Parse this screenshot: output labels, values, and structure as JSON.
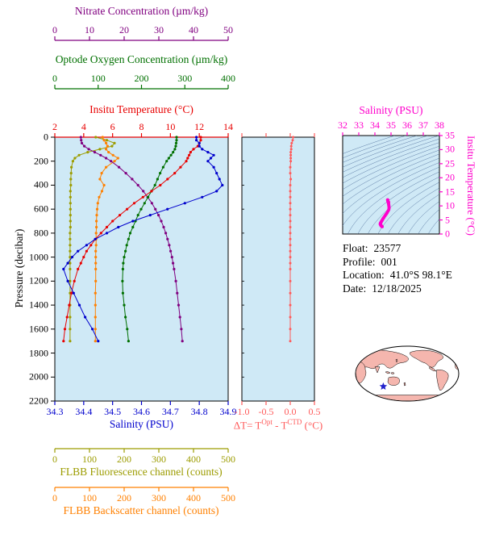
{
  "main_plot": {
    "bg": "#cfe9f6",
    "pressure_label": "Pressure (decibar)",
    "pressure_ticks": [
      "0",
      "200",
      "400",
      "600",
      "800",
      "1000",
      "1200",
      "1400",
      "1600",
      "1800",
      "2000",
      "2200"
    ],
    "pressure_range": [
      0,
      2200
    ]
  },
  "top_axes": [
    {
      "id": "nitrate",
      "title": "Nitrate Concentration (µm/kg)",
      "color": "#800080",
      "ticks": [
        "0",
        "10",
        "20",
        "30",
        "40",
        "50"
      ],
      "range": [
        0,
        50
      ]
    },
    {
      "id": "oxygen",
      "title": "Optode Oxygen Concentration (µm/kg)",
      "color": "#007000",
      "ticks": [
        "0",
        "100",
        "200",
        "300",
        "400"
      ],
      "range": [
        0,
        400
      ]
    },
    {
      "id": "temperature",
      "title": "Insitu Temperature (°C)",
      "color": "#e80000",
      "ticks": [
        "2",
        "4",
        "6",
        "8",
        "10",
        "12",
        "14"
      ],
      "range": [
        2,
        14
      ]
    }
  ],
  "bottom_axes": [
    {
      "id": "salinity",
      "title": "Salinity (PSU)",
      "color": "#0000cd",
      "ticks": [
        "34.3",
        "34.4",
        "34.5",
        "34.6",
        "34.7",
        "34.8",
        "34.9"
      ],
      "range": [
        34.3,
        34.9
      ]
    },
    {
      "id": "fluorescence",
      "title": "FLBB Fluorescence channel (counts)",
      "color": "#9c9c00",
      "ticks": [
        "0",
        "100",
        "200",
        "300",
        "400",
        "500"
      ],
      "range": [
        0,
        500
      ]
    },
    {
      "id": "backscatter",
      "title": "FLBB Backscatter channel (counts)",
      "color": "#ff8000",
      "ticks": [
        "0",
        "100",
        "200",
        "300",
        "400",
        "500"
      ],
      "range": [
        0,
        500
      ]
    }
  ],
  "delta_plot": {
    "bg": "#cfe9f6",
    "color": "#ff5a5a",
    "ticks": [
      "-1.0",
      "-0.5",
      "0.0",
      "0.5"
    ],
    "range": [
      -1.0,
      0.5
    ],
    "title_pre": "ΔT= T",
    "title_sup1": "Opt",
    "title_mid": " - T",
    "title_sup2": "CTD",
    "title_post": " (°C)"
  },
  "ts_plot": {
    "bg": "#cfe9f6",
    "color": "#ff00cc",
    "contour_color": "#3a5a8c",
    "x_title": "Salinity (PSU)",
    "y_title": "Insitu Temperature (°C)",
    "x_ticks": [
      "32",
      "33",
      "34",
      "35",
      "36",
      "37",
      "38"
    ],
    "x_range": [
      32,
      38
    ],
    "y_ticks": [
      "0",
      "5",
      "10",
      "15",
      "20",
      "25",
      "30",
      "35"
    ],
    "y_range": [
      0,
      35
    ]
  },
  "info": {
    "rows": [
      {
        "label": "Float:",
        "value": "23577"
      },
      {
        "label": "Profile:",
        "value": "001"
      },
      {
        "label": "Location:",
        "value": "41.0°S 98.1°E"
      },
      {
        "label": "Date:",
        "value": "12/18/2025"
      }
    ]
  },
  "map": {
    "land_color": "#f5b6ae",
    "ocean_color": "#ffffff",
    "star_color": "#2222cc",
    "star_lon_e": 98.1,
    "star_lat_n": -41.0
  },
  "chart_data": [
    {
      "type": "line",
      "title": "Float profiles vs pressure",
      "ylabel": "Pressure (decibar)",
      "ylim": [
        0,
        2200
      ],
      "y_inverted": true,
      "pressure": [
        0,
        25,
        50,
        75,
        100,
        125,
        150,
        175,
        200,
        250,
        300,
        350,
        400,
        450,
        500,
        550,
        600,
        650,
        700,
        750,
        800,
        850,
        900,
        950,
        1000,
        1050,
        1100,
        1200,
        1300,
        1400,
        1500,
        1600,
        1700
      ],
      "series": [
        {
          "name": "FLBB Fluorescence channel (counts)",
          "xlim": [
            0,
            500
          ],
          "color": "#9c9c00",
          "values": [
            118,
            150,
            172,
            165,
            130,
            95,
            70,
            58,
            52,
            48,
            47,
            46,
            46,
            45,
            45,
            45,
            45,
            45,
            45,
            45,
            44,
            44,
            44,
            44,
            44,
            44,
            44,
            44,
            44,
            44,
            44,
            44,
            44
          ]
        },
        {
          "name": "FLBB Backscatter channel (counts)",
          "xlim": [
            0,
            500
          ],
          "color": "#ff8000",
          "values": [
            138,
            142,
            148,
            152,
            148,
            155,
            168,
            182,
            172,
            148,
            135,
            130,
            142,
            136,
            128,
            124,
            122,
            121,
            120,
            120,
            119,
            119,
            119,
            118,
            118,
            118,
            118,
            118,
            117,
            117,
            117,
            117,
            117
          ]
        },
        {
          "name": "Nitrate Concentration (µm/kg)",
          "xlim": [
            0,
            50
          ],
          "color": "#800080",
          "values": [
            7.5,
            7.6,
            7.8,
            8.5,
            9.8,
            11.5,
            13.2,
            14.8,
            16.2,
            18.5,
            20.5,
            22.3,
            24,
            25.5,
            26.8,
            28,
            29,
            29.9,
            30.7,
            31.4,
            32,
            32.5,
            33,
            33.4,
            33.8,
            34.1,
            34.4,
            34.9,
            35.3,
            35.7,
            36.1,
            36.5,
            36.8
          ]
        },
        {
          "name": "Optode Oxygen Concentration (µm/kg)",
          "xlim": [
            0,
            400
          ],
          "color": "#007000",
          "values": [
            281,
            281,
            280,
            279,
            277,
            273,
            268,
            263,
            258,
            250,
            243,
            237,
            231,
            223,
            215,
            207,
            199,
            192,
            186,
            180,
            174,
            170,
            166,
            163,
            160,
            158,
            157,
            156,
            157,
            160,
            163,
            167,
            170
          ]
        },
        {
          "name": "Insitu Temperature (°C)",
          "xlim": [
            2,
            14
          ],
          "color": "#e80000",
          "values": [
            12.1,
            12.1,
            12.0,
            11.9,
            11.6,
            11.4,
            11.3,
            11.2,
            11.1,
            10.7,
            10.3,
            9.8,
            9.3,
            8.7,
            8.1,
            7.5,
            7.0,
            6.5,
            6.0,
            5.6,
            5.2,
            4.8,
            4.5,
            4.2,
            4.0,
            3.8,
            3.6,
            3.35,
            3.15,
            3.0,
            2.85,
            2.7,
            2.6
          ]
        },
        {
          "name": "Salinity (PSU)",
          "xlim": [
            34.3,
            34.9
          ],
          "color": "#0000cd",
          "values": [
            34.79,
            34.79,
            34.8,
            34.8,
            34.81,
            34.83,
            34.85,
            34.84,
            34.83,
            34.85,
            34.86,
            34.87,
            34.88,
            34.86,
            34.81,
            34.75,
            34.69,
            34.63,
            34.57,
            34.52,
            34.48,
            34.44,
            34.41,
            34.38,
            34.36,
            34.345,
            34.33,
            34.345,
            34.365,
            34.385,
            34.405,
            34.43,
            34.45
          ]
        }
      ]
    },
    {
      "type": "line",
      "title": "ΔT = T(Opt) - T(CTD) (°C)",
      "xlim": [
        -1.0,
        0.5
      ],
      "ylim": [
        0,
        2200
      ],
      "pressure": [
        0,
        25,
        50,
        75,
        100,
        125,
        150,
        175,
        200,
        250,
        300,
        350,
        400,
        450,
        500,
        550,
        600,
        650,
        700,
        750,
        800,
        850,
        900,
        950,
        1000,
        1050,
        1100,
        1200,
        1300,
        1400,
        1500,
        1600,
        1700
      ],
      "series": [
        {
          "name": "ΔT (°C)",
          "color": "#ff5a5a",
          "values": [
            0.06,
            0.05,
            0.03,
            0.02,
            0.02,
            0.01,
            0.01,
            0.01,
            0.01,
            0,
            0,
            0.01,
            0,
            0,
            0,
            0,
            0,
            0,
            0,
            0,
            0,
            0,
            0,
            0,
            0,
            0,
            0,
            0,
            0,
            0,
            0,
            0,
            0
          ]
        }
      ]
    },
    {
      "type": "scatter",
      "title": "Temperature-Salinity diagram with density contours",
      "xlabel": "Salinity (PSU)",
      "ylabel": "Insitu Temperature (°C)",
      "xlim": [
        32,
        38
      ],
      "ylim": [
        0,
        35
      ],
      "series": [
        {
          "name": "T-S profile",
          "color": "#ff00cc",
          "salinity": [
            34.79,
            34.79,
            34.8,
            34.8,
            34.81,
            34.83,
            34.85,
            34.84,
            34.83,
            34.85,
            34.86,
            34.87,
            34.88,
            34.86,
            34.81,
            34.75,
            34.69,
            34.63,
            34.57,
            34.52,
            34.48,
            34.44,
            34.41,
            34.38,
            34.36,
            34.345,
            34.33,
            34.345,
            34.365,
            34.385,
            34.405,
            34.43,
            34.45
          ],
          "temperature": [
            12.1,
            12.1,
            12.0,
            11.9,
            11.6,
            11.4,
            11.3,
            11.2,
            11.1,
            10.7,
            10.3,
            9.8,
            9.3,
            8.7,
            8.1,
            7.5,
            7.0,
            6.5,
            6.0,
            5.6,
            5.2,
            4.8,
            4.5,
            4.2,
            4.0,
            3.8,
            3.6,
            3.35,
            3.15,
            3.0,
            2.85,
            2.7,
            2.6
          ]
        }
      ]
    }
  ]
}
